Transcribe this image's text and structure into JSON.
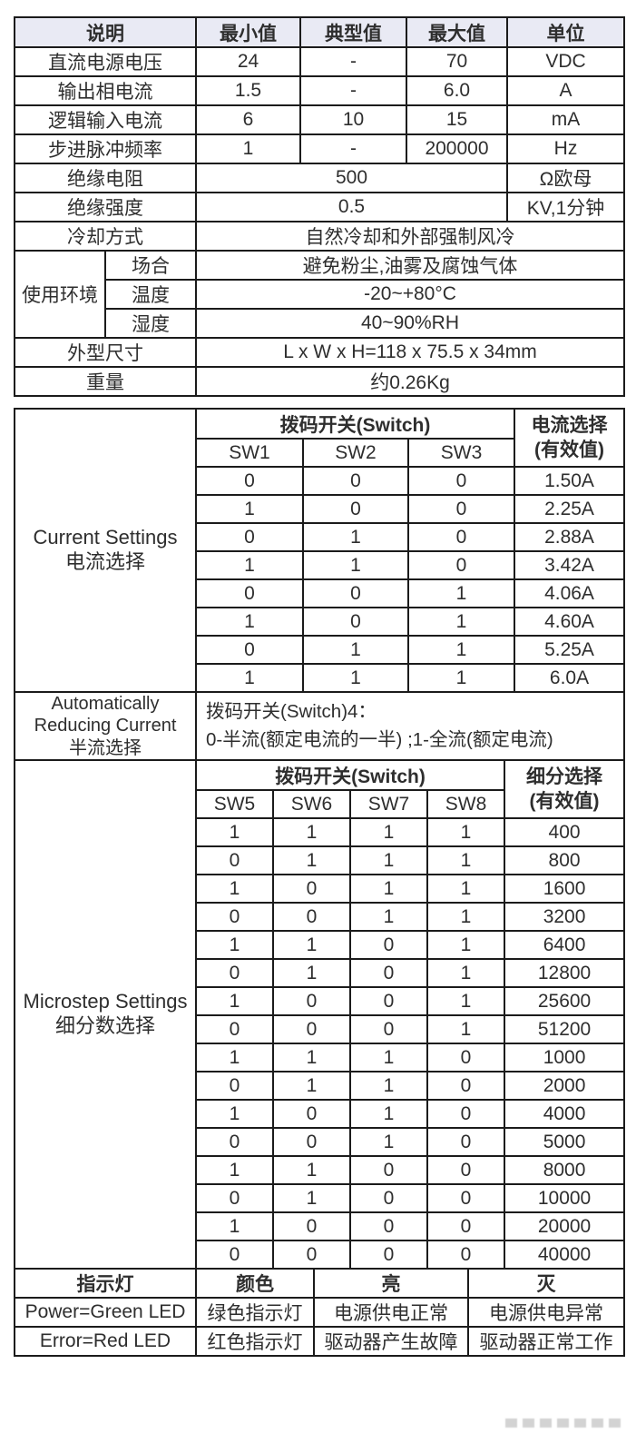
{
  "colors": {
    "header_bg": "#e9eaf4",
    "border": "#1b1b1b",
    "text": "#2e2e2e"
  },
  "spec": {
    "headers": [
      "说明",
      "最小值",
      "典型值",
      "最大值",
      "单位"
    ],
    "env_label": "使用环境",
    "rows": [
      {
        "label": "直流电源电压",
        "min": "24",
        "typ": "-",
        "max": "70",
        "unit": "VDC"
      },
      {
        "label": "输出相电流",
        "min": "1.5",
        "typ": "-",
        "max": "6.0",
        "unit": "A"
      },
      {
        "label": "逻辑输入电流",
        "min": "6",
        "typ": "10",
        "max": "15",
        "unit": "mA"
      },
      {
        "label": "步进脉冲频率",
        "min": "1",
        "typ": "-",
        "max": "200000",
        "unit": "Hz"
      },
      {
        "label": "绝缘电阻",
        "value": "500",
        "unit": "Ω欧母"
      },
      {
        "label": "绝缘强度",
        "value": "0.5",
        "unit": "KV,1分钟"
      },
      {
        "label": "冷却方式",
        "value": "自然冷却和外部强制风冷"
      },
      {
        "label": "场合",
        "value": "避免粉尘,油雾及腐蚀气体"
      },
      {
        "label": "温度",
        "value": "-20~+80°C"
      },
      {
        "label": "湿度",
        "value": "40~90%RH"
      },
      {
        "label": "外型尺寸",
        "value": "L x W x H=118 x 75.5 x 34mm"
      },
      {
        "label": "重量",
        "value": "约0.26Kg"
      }
    ]
  },
  "current": {
    "label_line1": "Current Settings",
    "label_line2": "电流选择",
    "switch_header": "拨码开关(Switch)",
    "value_header_line1": "电流选择",
    "value_header_line2": "(有效值)",
    "sw_headers": [
      "SW1",
      "SW2",
      "SW3"
    ],
    "rows": [
      [
        "0",
        "0",
        "0",
        "1.50A"
      ],
      [
        "1",
        "0",
        "0",
        "2.25A"
      ],
      [
        "0",
        "1",
        "0",
        "2.88A"
      ],
      [
        "1",
        "1",
        "0",
        "3.42A"
      ],
      [
        "0",
        "0",
        "1",
        "4.06A"
      ],
      [
        "1",
        "0",
        "1",
        "4.60A"
      ],
      [
        "0",
        "1",
        "1",
        "5.25A"
      ],
      [
        "1",
        "1",
        "1",
        "6.0A"
      ]
    ]
  },
  "half_current": {
    "label_line1": "Automatically",
    "label_line2": "Reducing Current",
    "label_line3": "半流选择",
    "text_line1": "拨码开关(Switch)4：",
    "text_line2": "0-半流(额定电流的一半) ;1-全流(额定电流)"
  },
  "microstep": {
    "label_line1": "Microstep Settings",
    "label_line2": "细分数选择",
    "switch_header": "拨码开关(Switch)",
    "value_header_line1": "细分选择",
    "value_header_line2": "(有效值)",
    "sw_headers": [
      "SW5",
      "SW6",
      "SW7",
      "SW8"
    ],
    "rows": [
      [
        "1",
        "1",
        "1",
        "1",
        "400"
      ],
      [
        "0",
        "1",
        "1",
        "1",
        "800"
      ],
      [
        "1",
        "0",
        "1",
        "1",
        "1600"
      ],
      [
        "0",
        "0",
        "1",
        "1",
        "3200"
      ],
      [
        "1",
        "1",
        "0",
        "1",
        "6400"
      ],
      [
        "0",
        "1",
        "0",
        "1",
        "12800"
      ],
      [
        "1",
        "0",
        "0",
        "1",
        "25600"
      ],
      [
        "0",
        "0",
        "0",
        "1",
        "51200"
      ],
      [
        "1",
        "1",
        "1",
        "0",
        "1000"
      ],
      [
        "0",
        "1",
        "1",
        "0",
        "2000"
      ],
      [
        "1",
        "0",
        "1",
        "0",
        "4000"
      ],
      [
        "0",
        "0",
        "1",
        "0",
        "5000"
      ],
      [
        "1",
        "1",
        "0",
        "0",
        "8000"
      ],
      [
        "0",
        "1",
        "0",
        "0",
        "10000"
      ],
      [
        "1",
        "0",
        "0",
        "0",
        "20000"
      ],
      [
        "0",
        "0",
        "0",
        "0",
        "40000"
      ]
    ]
  },
  "led": {
    "headers": [
      "指示灯",
      "颜色",
      "亮",
      "灭"
    ],
    "rows": [
      [
        "Power=Green LED",
        "绿色指示灯",
        "电源供电正常",
        "电源供电异常"
      ],
      [
        "Error=Red LED",
        "红色指示灯",
        "驱动器产生故障",
        "驱动器正常工作"
      ]
    ]
  }
}
